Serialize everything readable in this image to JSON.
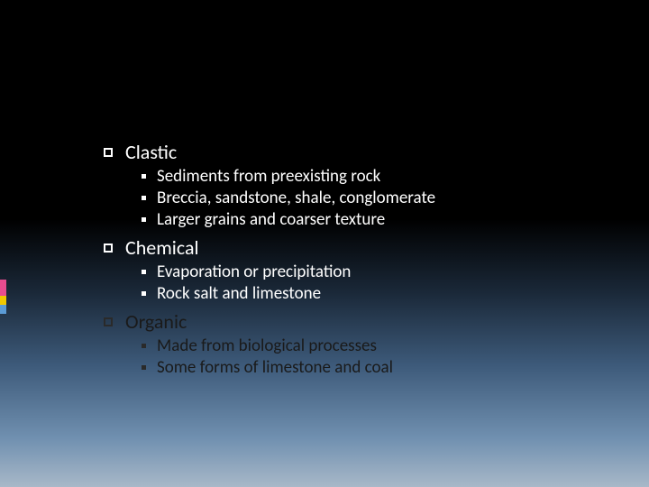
{
  "background": {
    "gradient_stops": [
      "#000000",
      "#000000",
      "#1a2838",
      "#3d5a7a",
      "#7090b0",
      "#a8b8c8"
    ],
    "gradient_positions": [
      0,
      45,
      60,
      75,
      90,
      100
    ]
  },
  "accent_bar": {
    "segments": [
      {
        "color": "#e84c8f",
        "height": 18
      },
      {
        "color": "#f0c800",
        "height": 10
      },
      {
        "color": "#5b9bd5",
        "height": 10
      }
    ]
  },
  "typography": {
    "main_fontsize": 22,
    "sub_fontsize": 19,
    "font_family": "Calibri",
    "text_color_light": "#ffffff",
    "text_color_dark": "#1a1a1a"
  },
  "bullets": {
    "main_square_size": 10,
    "main_square_border": 2,
    "sub_dot_size": 5
  },
  "items": [
    {
      "label": "Clastic",
      "label_color": "light",
      "sub": [
        {
          "text": "Sediments from preexisting rock",
          "color": "light"
        },
        {
          "text": "Breccia, sandstone, shale, conglomerate",
          "color": "light"
        },
        {
          "text": "Larger grains and coarser texture",
          "color": "light"
        }
      ]
    },
    {
      "label": "Chemical",
      "label_color": "light",
      "sub": [
        {
          "text": "Evaporation or precipitation",
          "color": "light"
        },
        {
          "text": "Rock salt and limestone",
          "color": "light"
        }
      ]
    },
    {
      "label": "Organic",
      "label_color": "dark",
      "sub": [
        {
          "text": "Made from biological processes",
          "color": "dark"
        },
        {
          "text": "Some forms of limestone and coal",
          "color": "dark"
        }
      ]
    }
  ]
}
